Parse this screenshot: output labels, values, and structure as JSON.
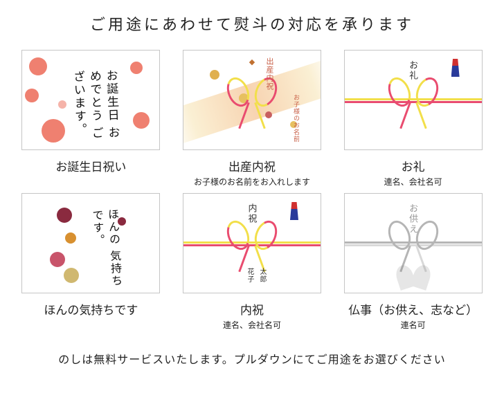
{
  "page": {
    "heading": "ご用途にあわせて熨斗の対応を承ります",
    "footer_note": "のしは無料サービスいたします。プルダウンにてご用途をお選びください"
  },
  "cards": {
    "c1": {
      "title": "お誕生日祝い",
      "sub": "",
      "art_text": "お誕生日\nおめでとう\nございます。",
      "palette": {
        "flower": "#ef8070"
      }
    },
    "c2": {
      "title": "出産内祝",
      "sub": "お子様のお名前をお入れします",
      "label_occasion": "出産内祝",
      "label_name": "お子様のお名前",
      "palette": {
        "band": "#f0a864",
        "accent": "#c86048"
      }
    },
    "c3": {
      "title": "お礼",
      "sub": "連名、会社名可",
      "label_center": "お礼",
      "mizuhiki": {
        "top_color": "#f2df4a",
        "bottom_color": "#e94c6f"
      }
    },
    "c4": {
      "title": "ほんの気持ちです",
      "sub": "",
      "art_text": "ほんの\n気持ち\nです。",
      "palette": {
        "a": "#8a2a3f",
        "b": "#d89030",
        "c": "#c8546a",
        "d": "#d0b870"
      }
    },
    "c5": {
      "title": "内祝",
      "sub": "連名、会社名可",
      "label_center": "内祝",
      "name1": "花子",
      "name2": "太郎",
      "mizuhiki": {
        "top_color": "#f2df4a",
        "bottom_color": "#e94c6f"
      }
    },
    "c6": {
      "title": "仏事（お供え、志など）",
      "sub": "連名可",
      "label_center": "お供え",
      "mizuhiki": {
        "top_color": "#b5b5b5",
        "bottom_color": "#d9d9d9"
      }
    }
  }
}
